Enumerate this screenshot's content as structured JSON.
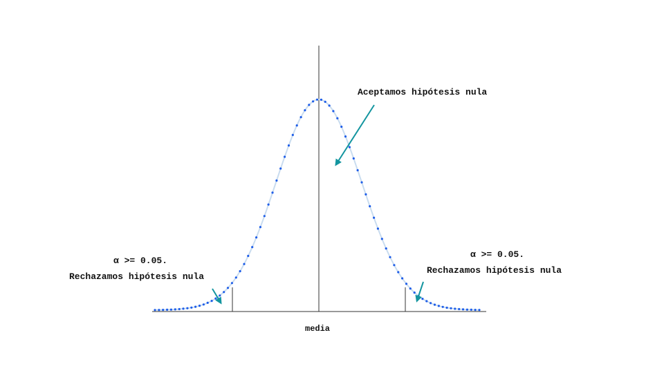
{
  "labels": {
    "accept": "Aceptamos hipótesis nula",
    "left_alpha": "α >= 0.05.",
    "left_reject": "Rechazamos hipótesis nula",
    "right_alpha": "α >= 0.05.",
    "right_reject": "Rechazamos hipótesis nula",
    "center_axis": "media"
  },
  "colors": {
    "curve_dots": "#1f5ee8",
    "curve_line": "#c9dcef",
    "arrow": "#13959f",
    "axis": "#333333",
    "text": "#111111"
  },
  "distribution": {
    "type": "normal",
    "cutoffs_sd": [
      -2,
      2
    ]
  }
}
